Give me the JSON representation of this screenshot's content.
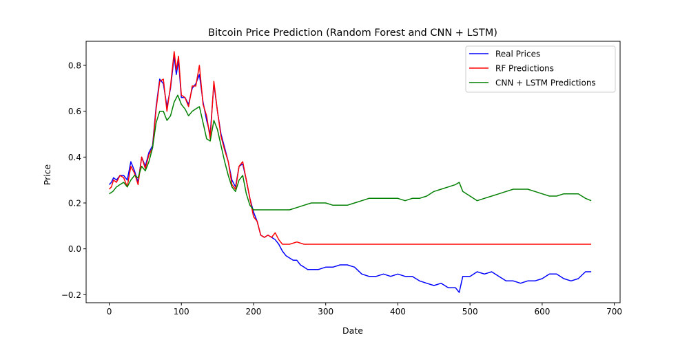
{
  "chart_data": {
    "type": "line",
    "title": "Bitcoin Price Prediction (Random Forest and CNN + LSTM)",
    "xlabel": "Date",
    "ylabel": "Price",
    "xlim": [
      -32,
      708
    ],
    "ylim": [
      -0.235,
      0.905
    ],
    "xticks": [
      0,
      100,
      200,
      300,
      400,
      500,
      600,
      700
    ],
    "xtick_labels": [
      "0",
      "100",
      "200",
      "300",
      "400",
      "500",
      "600",
      "700"
    ],
    "yticks": [
      -0.2,
      0.0,
      0.2,
      0.4,
      0.6,
      0.8
    ],
    "ytick_labels": [
      "−0.2",
      "0.0",
      "0.2",
      "0.4",
      "0.6",
      "0.8"
    ],
    "grid": false,
    "legend_position": "top-right",
    "series": [
      {
        "name": "Real Prices",
        "color": "#0000ff",
        "x": [
          0,
          3,
          6,
          10,
          15,
          20,
          25,
          30,
          35,
          40,
          45,
          50,
          55,
          60,
          65,
          70,
          75,
          80,
          85,
          90,
          93,
          96,
          100,
          105,
          110,
          115,
          120,
          125,
          130,
          135,
          140,
          145,
          150,
          155,
          160,
          165,
          170,
          175,
          180,
          185,
          190,
          195,
          200,
          205,
          210,
          215,
          220,
          225,
          230,
          235,
          240,
          245,
          250,
          255,
          260,
          265,
          270,
          275,
          280,
          290,
          300,
          310,
          320,
          330,
          340,
          350,
          360,
          370,
          380,
          390,
          400,
          410,
          420,
          430,
          440,
          450,
          460,
          470,
          480,
          485,
          490,
          500,
          510,
          520,
          530,
          540,
          550,
          560,
          570,
          580,
          590,
          600,
          610,
          620,
          630,
          640,
          650,
          660,
          668
        ],
        "y": [
          0.28,
          0.29,
          0.31,
          0.3,
          0.32,
          0.32,
          0.3,
          0.38,
          0.34,
          0.29,
          0.4,
          0.36,
          0.42,
          0.45,
          0.62,
          0.74,
          0.72,
          0.62,
          0.7,
          0.84,
          0.76,
          0.82,
          0.66,
          0.66,
          0.63,
          0.7,
          0.72,
          0.76,
          0.64,
          0.56,
          0.5,
          0.72,
          0.6,
          0.5,
          0.44,
          0.38,
          0.3,
          0.27,
          0.36,
          0.37,
          0.3,
          0.22,
          0.16,
          0.12,
          0.06,
          0.05,
          0.06,
          0.05,
          0.04,
          0.02,
          -0.01,
          -0.03,
          -0.04,
          -0.05,
          -0.05,
          -0.07,
          -0.08,
          -0.09,
          -0.09,
          -0.09,
          -0.08,
          -0.08,
          -0.07,
          -0.07,
          -0.08,
          -0.11,
          -0.12,
          -0.12,
          -0.11,
          -0.12,
          -0.11,
          -0.12,
          -0.12,
          -0.14,
          -0.15,
          -0.16,
          -0.15,
          -0.17,
          -0.17,
          -0.19,
          -0.12,
          -0.12,
          -0.1,
          -0.11,
          -0.1,
          -0.12,
          -0.14,
          -0.14,
          -0.15,
          -0.14,
          -0.14,
          -0.13,
          -0.11,
          -0.11,
          -0.13,
          -0.14,
          -0.13,
          -0.1,
          -0.1
        ]
      },
      {
        "name": "RF Predictions",
        "color": "#ff0000",
        "x": [
          0,
          3,
          6,
          10,
          15,
          20,
          25,
          30,
          35,
          40,
          45,
          50,
          55,
          60,
          65,
          70,
          75,
          80,
          85,
          90,
          93,
          96,
          100,
          105,
          110,
          115,
          120,
          125,
          130,
          135,
          140,
          145,
          150,
          155,
          160,
          165,
          170,
          175,
          180,
          185,
          190,
          195,
          200,
          205,
          210,
          215,
          220,
          225,
          230,
          235,
          240,
          250,
          260,
          270,
          280,
          290,
          300,
          350,
          400,
          450,
          500,
          550,
          600,
          650,
          668
        ],
        "y": [
          0.26,
          0.27,
          0.3,
          0.29,
          0.32,
          0.31,
          0.27,
          0.36,
          0.33,
          0.28,
          0.4,
          0.35,
          0.41,
          0.44,
          0.61,
          0.73,
          0.74,
          0.6,
          0.71,
          0.86,
          0.78,
          0.84,
          0.67,
          0.66,
          0.62,
          0.71,
          0.71,
          0.8,
          0.63,
          0.58,
          0.48,
          0.73,
          0.6,
          0.49,
          0.43,
          0.38,
          0.28,
          0.26,
          0.36,
          0.38,
          0.3,
          0.22,
          0.14,
          0.12,
          0.06,
          0.05,
          0.06,
          0.05,
          0.07,
          0.04,
          0.02,
          0.02,
          0.03,
          0.02,
          0.02,
          0.02,
          0.02,
          0.02,
          0.02,
          0.02,
          0.02,
          0.02,
          0.02,
          0.02,
          0.02
        ]
      },
      {
        "name": "CNN + LSTM Predictions",
        "color": "#008000",
        "x": [
          0,
          5,
          10,
          15,
          20,
          25,
          30,
          35,
          40,
          45,
          50,
          55,
          60,
          65,
          70,
          75,
          80,
          85,
          90,
          95,
          100,
          105,
          110,
          115,
          120,
          125,
          130,
          135,
          140,
          145,
          150,
          155,
          160,
          165,
          170,
          175,
          180,
          185,
          190,
          195,
          200,
          210,
          220,
          230,
          240,
          250,
          260,
          270,
          280,
          290,
          300,
          310,
          320,
          330,
          340,
          350,
          360,
          370,
          380,
          390,
          400,
          410,
          420,
          430,
          440,
          450,
          460,
          470,
          480,
          485,
          490,
          500,
          510,
          520,
          530,
          540,
          550,
          560,
          570,
          580,
          590,
          600,
          610,
          620,
          630,
          640,
          650,
          660,
          668
        ],
        "y": [
          0.24,
          0.25,
          0.27,
          0.28,
          0.29,
          0.27,
          0.3,
          0.32,
          0.31,
          0.36,
          0.34,
          0.38,
          0.44,
          0.55,
          0.6,
          0.6,
          0.56,
          0.58,
          0.64,
          0.67,
          0.63,
          0.61,
          0.58,
          0.6,
          0.61,
          0.62,
          0.55,
          0.48,
          0.47,
          0.56,
          0.52,
          0.45,
          0.38,
          0.32,
          0.27,
          0.25,
          0.3,
          0.32,
          0.24,
          0.19,
          0.17,
          0.17,
          0.17,
          0.17,
          0.17,
          0.17,
          0.18,
          0.19,
          0.2,
          0.2,
          0.2,
          0.19,
          0.19,
          0.19,
          0.2,
          0.21,
          0.22,
          0.22,
          0.22,
          0.22,
          0.22,
          0.21,
          0.22,
          0.22,
          0.23,
          0.25,
          0.26,
          0.27,
          0.28,
          0.29,
          0.25,
          0.23,
          0.21,
          0.22,
          0.23,
          0.24,
          0.25,
          0.26,
          0.26,
          0.26,
          0.25,
          0.24,
          0.23,
          0.23,
          0.24,
          0.24,
          0.24,
          0.22,
          0.21
        ]
      }
    ]
  }
}
